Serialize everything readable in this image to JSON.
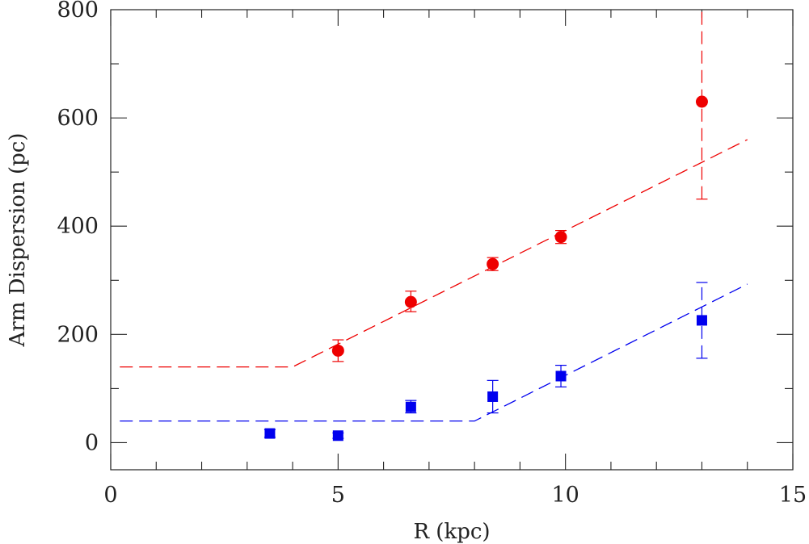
{
  "chart_data": {
    "type": "scatter",
    "xlabel": "R (kpc)",
    "ylabel": "Arm Dispersion (pc)",
    "xlim": [
      0,
      15
    ],
    "ylim": [
      -50,
      800
    ],
    "xticks": [
      0,
      5,
      10,
      15
    ],
    "yticks": [
      0,
      200,
      400,
      600,
      800
    ],
    "x_minor_step": 1,
    "y_minor_step": 100,
    "grid": false,
    "series": [
      {
        "name": "red-points",
        "marker": "circle",
        "color": "#ee0000",
        "points": [
          {
            "x": 5.0,
            "y": 170,
            "yerr_low": 150,
            "yerr_high": 190
          },
          {
            "x": 6.6,
            "y": 260,
            "yerr_low": 242,
            "yerr_high": 280
          },
          {
            "x": 8.4,
            "y": 330,
            "yerr_low": 318,
            "yerr_high": 342
          },
          {
            "x": 9.9,
            "y": 380,
            "yerr_low": 368,
            "yerr_high": 392
          },
          {
            "x": 13.0,
            "y": 630,
            "yerr_low": 450,
            "yerr_high": 800
          }
        ]
      },
      {
        "name": "blue-points",
        "marker": "square",
        "color": "#0000ee",
        "points": [
          {
            "x": 3.5,
            "y": 17,
            "yerr_low": 10,
            "yerr_high": 24
          },
          {
            "x": 5.0,
            "y": 13,
            "yerr_low": 8,
            "yerr_high": 18
          },
          {
            "x": 6.6,
            "y": 66,
            "yerr_low": 55,
            "yerr_high": 78
          },
          {
            "x": 8.4,
            "y": 85,
            "yerr_low": 55,
            "yerr_high": 115
          },
          {
            "x": 9.9,
            "y": 123,
            "yerr_low": 103,
            "yerr_high": 143
          },
          {
            "x": 13.0,
            "y": 226,
            "yerr_low": 156,
            "yerr_high": 296
          }
        ]
      }
    ],
    "model_lines": [
      {
        "name": "red-model",
        "color": "#ee0000",
        "x": [
          0.2,
          4.0,
          14.0
        ],
        "y": [
          140,
          140,
          560
        ]
      },
      {
        "name": "blue-model",
        "color": "#0000ee",
        "x": [
          0.2,
          8.0,
          14.0
        ],
        "y": [
          40,
          40,
          293
        ]
      }
    ]
  }
}
